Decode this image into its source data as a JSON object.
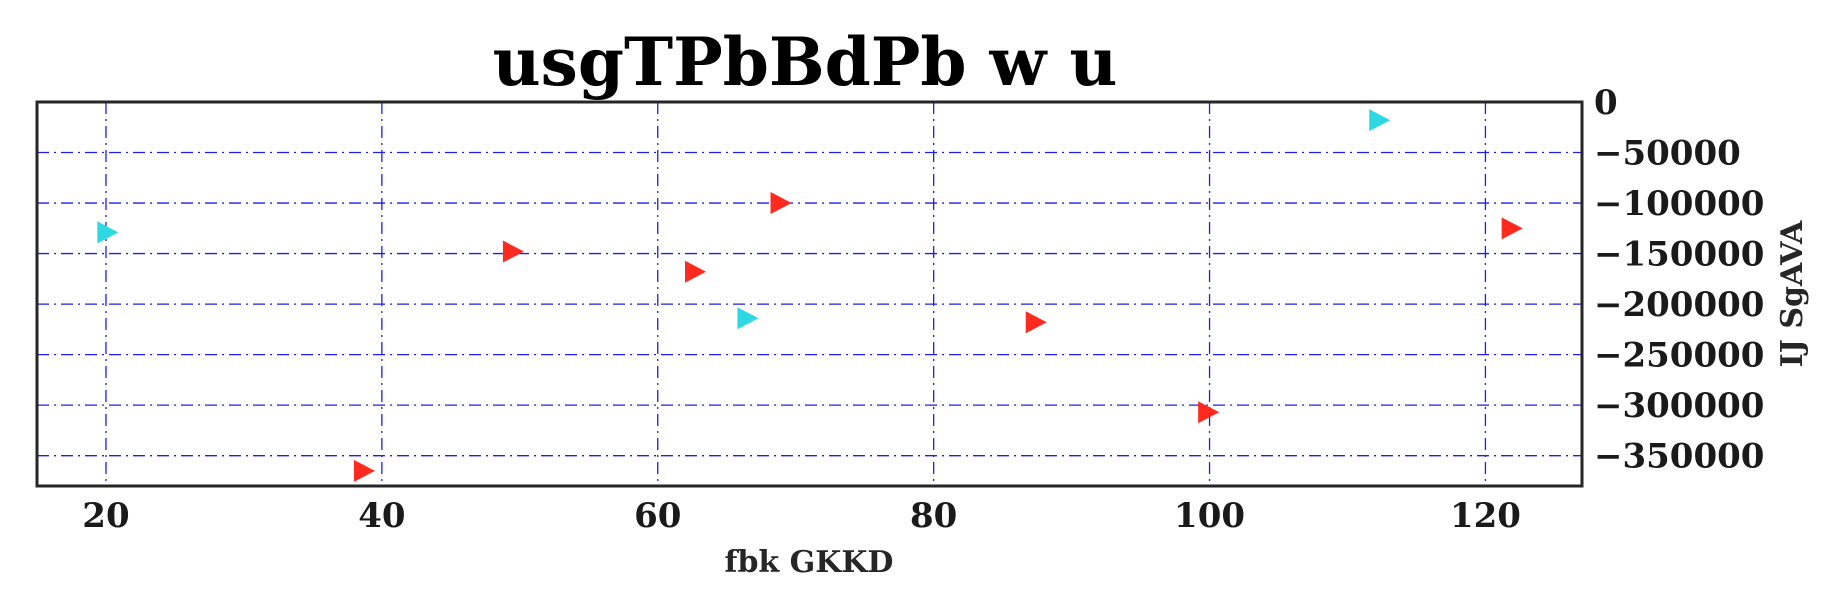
{
  "chart_data": {
    "type": "scatter",
    "title": "usgTPbBdPb w  u",
    "xlabel": "fbk GKKD",
    "ylabel": "IJ  SgAVA",
    "xlim": [
      15,
      127
    ],
    "ylim": [
      -380000,
      0
    ],
    "x_ticks": [
      20,
      40,
      60,
      80,
      100,
      120
    ],
    "x_tick_labels": [
      "20",
      "40",
      "60",
      "80",
      "100",
      "120"
    ],
    "y_ticks": [
      0,
      -50000,
      -100000,
      -150000,
      -200000,
      -250000,
      -300000,
      -350000
    ],
    "y_tick_labels": [
      "0",
      "−50000",
      "−100000",
      "−150000",
      "−200000",
      "−250000",
      "−300000",
      "−350000"
    ],
    "y_axis_side": "right",
    "grid": true,
    "marker": "triangle-right",
    "series": [
      {
        "color": "#ff2a1f",
        "points": [
          {
            "x": 38.7,
            "y": -365000
          },
          {
            "x": 49.5,
            "y": -148000
          },
          {
            "x": 62.7,
            "y": -168000
          },
          {
            "x": 68.9,
            "y": -100000
          },
          {
            "x": 87.4,
            "y": -218000
          },
          {
            "x": 99.9,
            "y": -307000
          },
          {
            "x": 121.9,
            "y": -125000
          }
        ]
      },
      {
        "color": "#2ed8e2",
        "points": [
          {
            "x": 20.1,
            "y": -129000
          },
          {
            "x": 66.5,
            "y": -214000
          },
          {
            "x": 112.3,
            "y": -18000
          }
        ]
      }
    ]
  }
}
